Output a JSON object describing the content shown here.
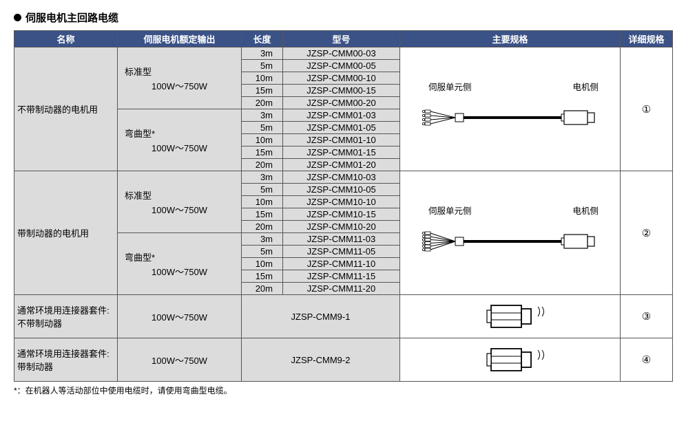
{
  "title": "伺服电机主回路电缆",
  "headers": {
    "name": "名称",
    "rated_output": "伺服电机额定输出",
    "length": "长度",
    "model": "型号",
    "main_spec": "主要规格",
    "detail_spec": "详细规格"
  },
  "col_widths": {
    "name": 150,
    "rated_output": 180,
    "length": 60,
    "model": 170,
    "main_spec": 320,
    "detail_spec": 76
  },
  "subtype_standard": "标准型",
  "subtype_bend": "弯曲型*",
  "range": "100W～750W",
  "sections": [
    {
      "name": "不带制动器的电机用",
      "detail": "①",
      "spec_left": "伺服单元侧",
      "spec_right": "电机侧",
      "pins": 4,
      "groups": [
        {
          "subtype_key": "subtype_standard",
          "rows": [
            {
              "len": "3m",
              "model": "JZSP-CMM00-03"
            },
            {
              "len": "5m",
              "model": "JZSP-CMM00-05"
            },
            {
              "len": "10m",
              "model": "JZSP-CMM00-10"
            },
            {
              "len": "15m",
              "model": "JZSP-CMM00-15"
            },
            {
              "len": "20m",
              "model": "JZSP-CMM00-20"
            }
          ]
        },
        {
          "subtype_key": "subtype_bend",
          "rows": [
            {
              "len": "3m",
              "model": "JZSP-CMM01-03"
            },
            {
              "len": "5m",
              "model": "JZSP-CMM01-05"
            },
            {
              "len": "10m",
              "model": "JZSP-CMM01-10"
            },
            {
              "len": "15m",
              "model": "JZSP-CMM01-15"
            },
            {
              "len": "20m",
              "model": "JZSP-CMM01-20"
            }
          ]
        }
      ]
    },
    {
      "name": "带制动器的电机用",
      "detail": "②",
      "spec_left": "伺服单元侧",
      "spec_right": "电机侧",
      "pins": 6,
      "groups": [
        {
          "subtype_key": "subtype_standard",
          "rows": [
            {
              "len": "3m",
              "model": "JZSP-CMM10-03"
            },
            {
              "len": "5m",
              "model": "JZSP-CMM10-05"
            },
            {
              "len": "10m",
              "model": "JZSP-CMM10-10"
            },
            {
              "len": "15m",
              "model": "JZSP-CMM10-15"
            },
            {
              "len": "20m",
              "model": "JZSP-CMM10-20"
            }
          ]
        },
        {
          "subtype_key": "subtype_bend",
          "rows": [
            {
              "len": "3m",
              "model": "JZSP-CMM11-03"
            },
            {
              "len": "5m",
              "model": "JZSP-CMM11-05"
            },
            {
              "len": "10m",
              "model": "JZSP-CMM11-10"
            },
            {
              "len": "15m",
              "model": "JZSP-CMM11-15"
            },
            {
              "len": "20m",
              "model": "JZSP-CMM11-20"
            }
          ]
        }
      ]
    }
  ],
  "simple_rows": [
    {
      "name_l1": "通常环境用连接器套件:",
      "name_l2": "不带制动器",
      "model": "JZSP-CMM9-1",
      "detail": "③"
    },
    {
      "name_l1": "通常环境用连接器套件:",
      "name_l2": "带制动器",
      "model": "JZSP-CMM9-2",
      "detail": "④"
    }
  ],
  "footnote": "*：在机器人等活动部位中使用电缆时，请使用弯曲型电缆。"
}
